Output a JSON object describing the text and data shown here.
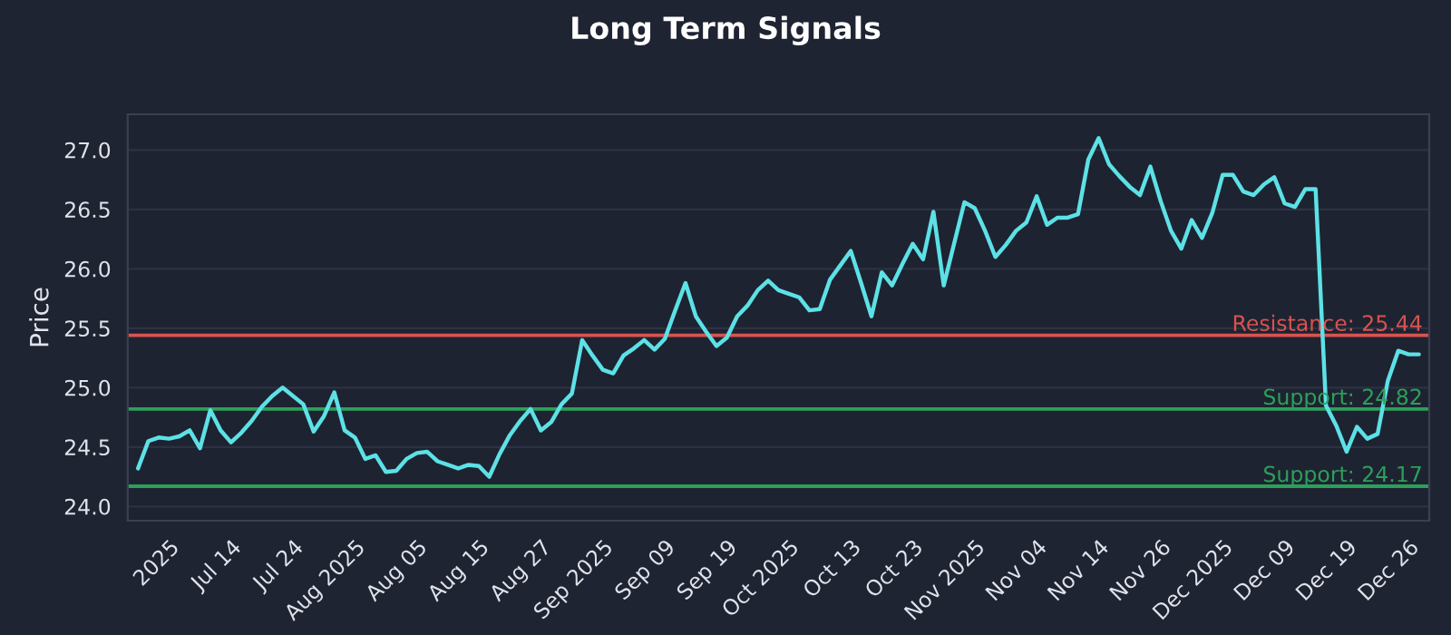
{
  "chart_data": {
    "type": "line",
    "title": "Long Term Signals",
    "ylabel": "Price",
    "categories": [
      null,
      null,
      null,
      "2025",
      null,
      null,
      null,
      null,
      null,
      "Jul 14",
      null,
      null,
      null,
      null,
      null,
      "Jul 24",
      null,
      null,
      null,
      null,
      null,
      "Aug 2025",
      null,
      null,
      null,
      null,
      null,
      "Aug 05",
      null,
      null,
      null,
      null,
      null,
      "Aug 15",
      null,
      null,
      null,
      null,
      null,
      "Aug 27",
      null,
      null,
      null,
      null,
      null,
      "Sep 2025",
      null,
      null,
      null,
      null,
      null,
      "Sep 09",
      null,
      null,
      null,
      null,
      null,
      "Sep 19",
      null,
      null,
      null,
      null,
      null,
      "Oct 2025",
      null,
      null,
      null,
      null,
      null,
      "Oct 13",
      null,
      null,
      null,
      null,
      null,
      "Oct 23",
      null,
      null,
      null,
      null,
      null,
      "Nov 2025",
      null,
      null,
      null,
      null,
      null,
      "Nov 04",
      null,
      null,
      null,
      null,
      null,
      "Nov 14",
      null,
      null,
      null,
      null,
      null,
      "Nov 26",
      null,
      null,
      null,
      null,
      null,
      "Dec 2025",
      null,
      null,
      null,
      null,
      null,
      "Dec 09",
      null,
      null,
      null,
      null,
      null,
      "Dec 19",
      null,
      null,
      null,
      null,
      null,
      "Dec 26",
      null
    ],
    "series": [
      {
        "color": "#5ce1e6",
        "values": [
          24.32,
          24.55,
          24.58,
          24.57,
          24.59,
          24.64,
          24.49,
          24.81,
          24.64,
          24.54,
          24.62,
          24.72,
          24.84,
          24.93,
          25.0,
          24.93,
          24.86,
          24.63,
          24.76,
          24.96,
          24.64,
          24.58,
          24.4,
          24.43,
          24.29,
          24.3,
          24.4,
          24.45,
          24.46,
          24.38,
          24.35,
          24.32,
          24.35,
          24.34,
          24.25,
          24.44,
          24.6,
          24.72,
          24.82,
          24.64,
          24.71,
          24.86,
          24.95,
          25.4,
          25.27,
          25.15,
          25.12,
          25.27,
          25.33,
          25.4,
          25.32,
          25.41,
          25.65,
          25.88,
          25.6,
          25.47,
          25.35,
          25.42,
          25.6,
          25.69,
          25.82,
          25.9,
          25.82,
          25.79,
          25.76,
          25.65,
          25.66,
          25.91,
          26.03,
          26.15,
          25.88,
          25.6,
          25.97,
          25.86,
          26.04,
          26.21,
          26.08,
          26.48,
          25.86,
          26.21,
          26.56,
          26.51,
          26.32,
          26.1,
          26.2,
          26.32,
          26.39,
          26.61,
          26.37,
          26.43,
          26.43,
          26.46,
          26.92,
          27.1,
          26.88,
          26.78,
          26.69,
          26.62,
          26.86,
          26.57,
          26.32,
          26.17,
          26.41,
          26.26,
          26.47,
          26.79,
          26.79,
          26.65,
          26.62,
          26.71,
          26.77,
          26.55,
          26.52,
          26.67,
          26.67,
          24.85,
          24.68,
          24.46,
          24.67,
          24.57,
          24.61,
          25.06,
          25.31,
          25.28,
          25.28
        ]
      }
    ],
    "ylim": [
      23.88,
      27.3
    ],
    "yticks": [
      {
        "value": 24,
        "label": "24.0"
      },
      24.5,
      {
        "value": 25,
        "label": "25.0"
      },
      25.5,
      {
        "value": 26,
        "label": "26.0"
      },
      26.5,
      {
        "value": 27,
        "label": "27.0"
      }
    ],
    "ref_lines": [
      {
        "axis": "y",
        "value": 25.44,
        "label": "Resistance: 25.44",
        "color": "#d9534f"
      },
      {
        "axis": "y",
        "value": 24.82,
        "label": "Support: 24.82",
        "color": "#2ca05a"
      },
      {
        "axis": "y",
        "value": 24.17,
        "label": "Support: 24.17",
        "color": "#2ca05a"
      }
    ],
    "grid": "y",
    "line_style": "solid",
    "marker": "none"
  }
}
